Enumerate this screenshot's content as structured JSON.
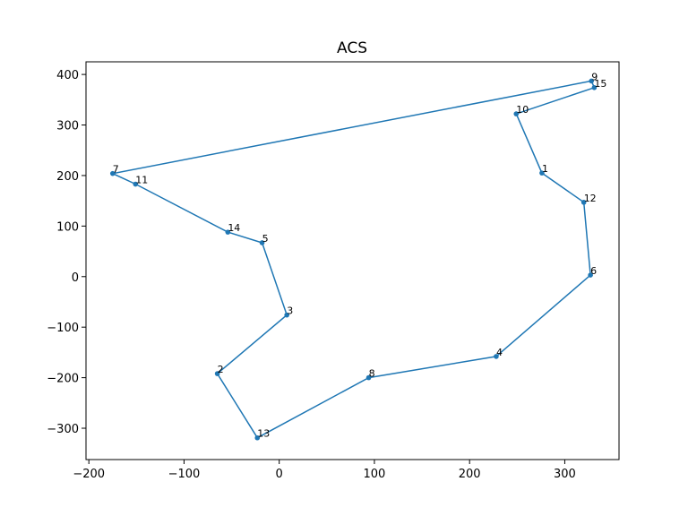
{
  "chart_data": {
    "type": "line",
    "title": "ACS",
    "xlabel": "",
    "ylabel": "",
    "xlim": [
      -203,
      357
    ],
    "ylim": [
      -362,
      425
    ],
    "xticks": [
      -200,
      -100,
      0,
      100,
      200,
      300
    ],
    "yticks": [
      -300,
      -200,
      -100,
      0,
      100,
      200,
      300,
      400
    ],
    "xtick_labels": [
      "−200",
      "−100",
      "0",
      "100",
      "200",
      "300"
    ],
    "ytick_labels": [
      "−300",
      "−200",
      "−100",
      "0",
      "100",
      "200",
      "300",
      "400"
    ],
    "grid": false,
    "color": "#1f77b4",
    "points": [
      {
        "id": "9",
        "x": 328,
        "y": 387
      },
      {
        "id": "15",
        "x": 331,
        "y": 374
      },
      {
        "id": "10",
        "x": 249,
        "y": 322
      },
      {
        "id": "1",
        "x": 276,
        "y": 205
      },
      {
        "id": "12",
        "x": 320,
        "y": 147
      },
      {
        "id": "6",
        "x": 327,
        "y": 3
      },
      {
        "id": "4",
        "x": 228,
        "y": -158
      },
      {
        "id": "8",
        "x": 94,
        "y": -200
      },
      {
        "id": "13",
        "x": -23,
        "y": -319
      },
      {
        "id": "2",
        "x": -65,
        "y": -192
      },
      {
        "id": "3",
        "x": 8,
        "y": -76
      },
      {
        "id": "5",
        "x": -18,
        "y": 67
      },
      {
        "id": "14",
        "x": -54,
        "y": 88
      },
      {
        "id": "11",
        "x": -151,
        "y": 183
      },
      {
        "id": "7",
        "x": -175,
        "y": 204
      }
    ],
    "closed": true
  }
}
